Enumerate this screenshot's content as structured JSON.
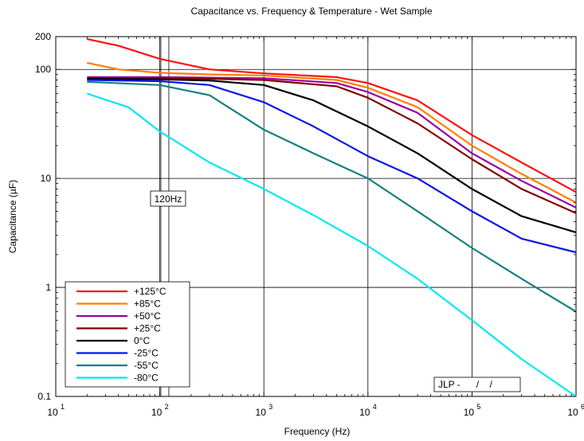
{
  "chart_data": {
    "type": "line",
    "title": "Capacitance vs. Frequency & Temperature - Wet Sample",
    "xlabel": "Frequency (Hz)",
    "ylabel": "Capacitance (µF)",
    "xscale": "log",
    "yscale": "log",
    "xlim": [
      10,
      1000000
    ],
    "ylim": [
      0.1,
      200
    ],
    "grid": true,
    "legend_position": "bottom-left",
    "x_tick_labels": [
      {
        "base": "10",
        "exp": "1",
        "value": 10
      },
      {
        "base": "10",
        "exp": "2",
        "value": 100
      },
      {
        "base": "10",
        "exp": "3",
        "value": 1000
      },
      {
        "base": "10",
        "exp": "4",
        "value": 10000
      },
      {
        "base": "10",
        "exp": "5",
        "value": 100000
      },
      {
        "base": "10",
        "exp": "6",
        "value": 1000000
      }
    ],
    "y_tick_labels": [
      {
        "label": "0.1",
        "value": 0.1
      },
      {
        "label": "1",
        "value": 1
      },
      {
        "label": "10",
        "value": 10
      },
      {
        "label": "100",
        "value": 100
      },
      {
        "label": "200",
        "value": 200
      }
    ],
    "annotations": [
      {
        "text": "120Hz",
        "x": 120
      },
      {
        "text": "JLP -      /    /",
        "x": 100000
      }
    ],
    "series": [
      {
        "name": "+125°C",
        "color": "#ff1010",
        "x": [
          20,
          40,
          100,
          300,
          1000,
          5000,
          10000,
          30000,
          100000,
          300000,
          1000000
        ],
        "y": [
          190,
          165,
          125,
          100,
          92,
          85,
          75,
          52,
          25,
          14,
          7.5
        ]
      },
      {
        "name": "+85°C",
        "color": "#ff7f00",
        "x": [
          20,
          40,
          100,
          300,
          1000,
          5000,
          10000,
          30000,
          100000,
          300000,
          1000000
        ],
        "y": [
          115,
          100,
          93,
          90,
          88,
          80,
          68,
          45,
          20,
          11,
          6
        ]
      },
      {
        "name": "+50°C",
        "color": "#9900a0",
        "x": [
          20,
          100,
          300,
          1000,
          5000,
          10000,
          30000,
          100000,
          300000,
          1000000
        ],
        "y": [
          85,
          85,
          84,
          83,
          75,
          62,
          40,
          17,
          9.5,
          5.4
        ]
      },
      {
        "name": "+25°C",
        "color": "#800000",
        "x": [
          20,
          100,
          300,
          1000,
          5000,
          10000,
          30000,
          100000,
          300000,
          1000000
        ],
        "y": [
          83,
          83,
          82,
          80,
          70,
          55,
          32,
          15,
          8,
          4.8
        ]
      },
      {
        "name": "0°C",
        "color": "#000000",
        "x": [
          20,
          100,
          300,
          1000,
          3000,
          10000,
          30000,
          100000,
          300000,
          1000000
        ],
        "y": [
          82,
          81,
          79,
          72,
          52,
          30,
          17,
          8,
          4.5,
          3.2
        ]
      },
      {
        "name": "-25°C",
        "color": "#0a14e6",
        "x": [
          20,
          100,
          300,
          1000,
          3000,
          10000,
          30000,
          100000,
          300000,
          1000000
        ],
        "y": [
          80,
          78,
          72,
          50,
          30,
          16,
          10,
          5,
          2.8,
          2.1
        ]
      },
      {
        "name": "-55°C",
        "color": "#148080",
        "x": [
          20,
          100,
          300,
          1000,
          3000,
          10000,
          30000,
          100000,
          300000,
          1000000
        ],
        "y": [
          77,
          72,
          58,
          28,
          17,
          10,
          5,
          2.3,
          1.2,
          0.6
        ]
      },
      {
        "name": "-80°C",
        "color": "#00e8f0",
        "x": [
          20,
          50,
          100,
          300,
          1000,
          3000,
          10000,
          30000,
          100000,
          300000,
          1000000
        ],
        "y": [
          60,
          45,
          27,
          14,
          8,
          4.6,
          2.4,
          1.2,
          0.5,
          0.22,
          0.1
        ]
      }
    ]
  }
}
